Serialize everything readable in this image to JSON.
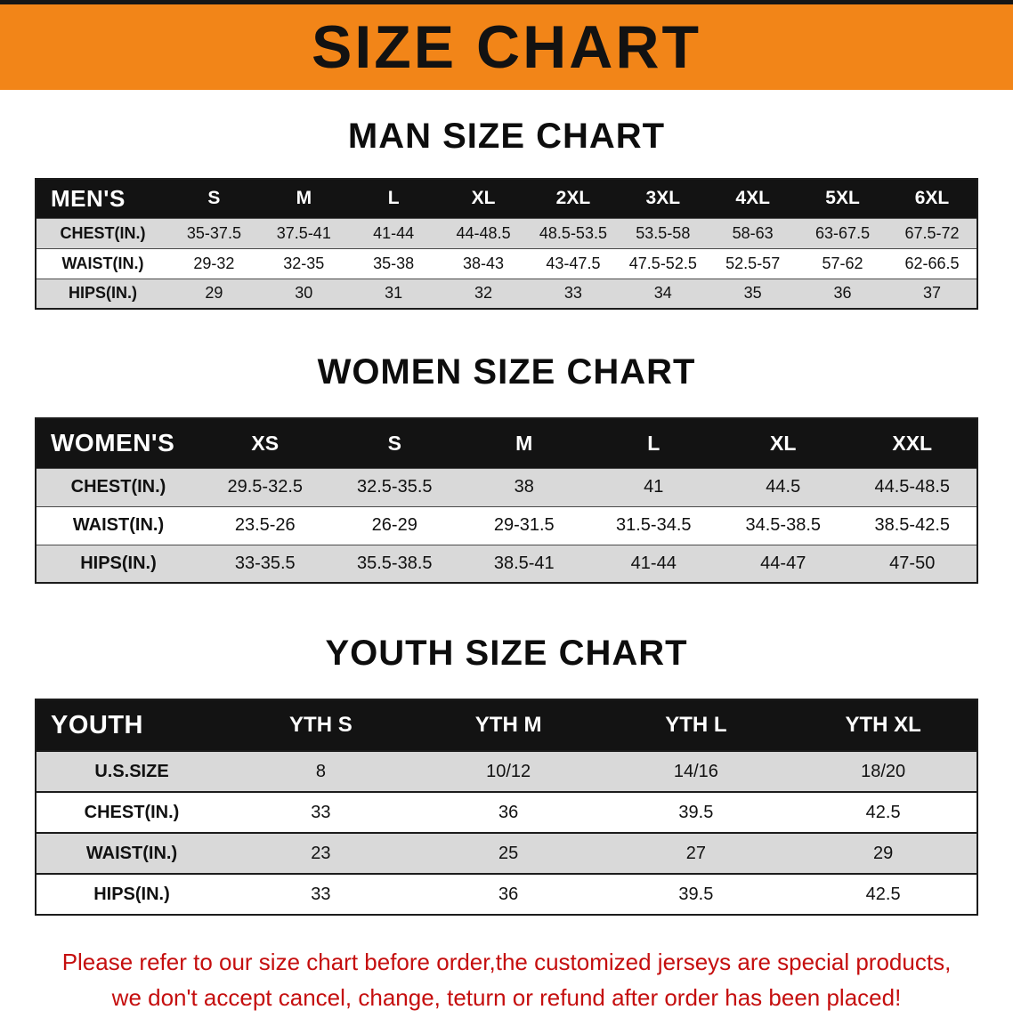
{
  "banner": {
    "title": "SIZE CHART"
  },
  "colors": {
    "banner_bg": "#F28518",
    "table_header_bg": "#131313",
    "row_alt_bg": "#D9D9D9",
    "note_text": "#C50E0E"
  },
  "sections": [
    {
      "heading": "MAN SIZE CHART",
      "table": {
        "header_label": "MEN'S",
        "columns": [
          "S",
          "M",
          "L",
          "XL",
          "2XL",
          "3XL",
          "4XL",
          "5XL",
          "6XL"
        ],
        "rows": [
          {
            "label": "CHEST(IN.)",
            "values": [
              "35-37.5",
              "37.5-41",
              "41-44",
              "44-48.5",
              "48.5-53.5",
              "53.5-58",
              "58-63",
              "63-67.5",
              "67.5-72"
            ]
          },
          {
            "label": "WAIST(IN.)",
            "values": [
              "29-32",
              "32-35",
              "35-38",
              "38-43",
              "43-47.5",
              "47.5-52.5",
              "52.5-57",
              "57-62",
              "62-66.5"
            ]
          },
          {
            "label": "HIPS(IN.)",
            "values": [
              "29",
              "30",
              "31",
              "32",
              "33",
              "34",
              "35",
              "36",
              "37"
            ]
          }
        ]
      }
    },
    {
      "heading": "WOMEN SIZE CHART",
      "table": {
        "header_label": "WOMEN'S",
        "columns": [
          "XS",
          "S",
          "M",
          "L",
          "XL",
          "XXL"
        ],
        "rows": [
          {
            "label": "CHEST(IN.)",
            "values": [
              "29.5-32.5",
              "32.5-35.5",
              "38",
              "41",
              "44.5",
              "44.5-48.5"
            ]
          },
          {
            "label": "WAIST(IN.)",
            "values": [
              "23.5-26",
              "26-29",
              "29-31.5",
              "31.5-34.5",
              "34.5-38.5",
              "38.5-42.5"
            ]
          },
          {
            "label": "HIPS(IN.)",
            "values": [
              "33-35.5",
              "35.5-38.5",
              "38.5-41",
              "41-44",
              "44-47",
              "47-50"
            ]
          }
        ]
      }
    },
    {
      "heading": "YOUTH SIZE CHART",
      "table": {
        "header_label": "YOUTH",
        "columns": [
          "YTH S",
          "YTH M",
          "YTH L",
          "YTH XL"
        ],
        "rows": [
          {
            "label": "U.S.SIZE",
            "values": [
              "8",
              "10/12",
              "14/16",
              "18/20"
            ]
          },
          {
            "label": "CHEST(IN.)",
            "values": [
              "33",
              "36",
              "39.5",
              "42.5"
            ]
          },
          {
            "label": "WAIST(IN.)",
            "values": [
              "23",
              "25",
              "27",
              "29"
            ]
          },
          {
            "label": "HIPS(IN.)",
            "values": [
              "33",
              "36",
              "39.5",
              "42.5"
            ]
          }
        ]
      }
    }
  ],
  "note": {
    "line1": "Please refer to our size chart before order,the customized jerseys are special products,",
    "line2": "we don't accept cancel, change, teturn or refund after order has been placed!"
  }
}
